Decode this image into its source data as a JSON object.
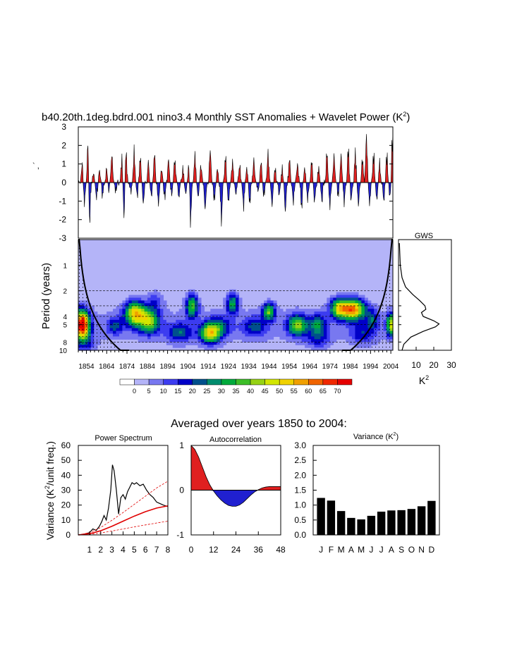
{
  "header": {
    "title": "b40.20th.1deg.bdrd.001 nino3.4 Monthly SST Anomalies + Wavelet Power (K",
    "title_sup": "2",
    "title_end": ")",
    "stray_mark": "` ,"
  },
  "summary_title": "Averaged over years 1850 to 2004:",
  "chart_data": [
    {
      "id": "timeseries",
      "type": "area",
      "ylim": [
        -3,
        3
      ],
      "yticks": [
        3,
        2,
        1,
        0,
        -1,
        -2,
        -3
      ],
      "ytick_labels": [
        "3",
        "2",
        "1",
        "0",
        "-1",
        "-2",
        "-3"
      ],
      "xlim": [
        1850,
        2005
      ],
      "positive_color": "#e02020",
      "negative_color": "#2020d0",
      "events": [
        {
          "x": 1852.0,
          "y": 1.2
        },
        {
          "x": 1853.0,
          "y": -1.4
        },
        {
          "x": 1854.8,
          "y": 2.6
        },
        {
          "x": 1855.5,
          "y": -2.9
        },
        {
          "x": 1857.5,
          "y": 0.6
        },
        {
          "x": 1859.0,
          "y": -1.0
        },
        {
          "x": 1860.5,
          "y": 0.7
        },
        {
          "x": 1862.0,
          "y": -0.9
        },
        {
          "x": 1864.0,
          "y": 0.9
        },
        {
          "x": 1865.0,
          "y": -0.6
        },
        {
          "x": 1866.5,
          "y": 1.7
        },
        {
          "x": 1868.5,
          "y": -0.5
        },
        {
          "x": 1871.5,
          "y": 1.6
        },
        {
          "x": 1872.5,
          "y": -2.1
        },
        {
          "x": 1873.5,
          "y": 1.9
        },
        {
          "x": 1876.0,
          "y": -0.6
        },
        {
          "x": 1877.5,
          "y": 1.9
        },
        {
          "x": 1879.0,
          "y": -0.9
        },
        {
          "x": 1880.5,
          "y": 1.6
        },
        {
          "x": 1882.0,
          "y": -1.2
        },
        {
          "x": 1884.5,
          "y": 1.3
        },
        {
          "x": 1886.0,
          "y": -0.8
        },
        {
          "x": 1887.5,
          "y": 1.8
        },
        {
          "x": 1889.5,
          "y": -1.3
        },
        {
          "x": 1891.0,
          "y": 0.8
        },
        {
          "x": 1892.5,
          "y": -1.0
        },
        {
          "x": 1894.5,
          "y": 1.4
        },
        {
          "x": 1896.0,
          "y": -0.8
        },
        {
          "x": 1897.5,
          "y": 1.4
        },
        {
          "x": 1899.5,
          "y": -1.0
        },
        {
          "x": 1901.5,
          "y": 0.8
        },
        {
          "x": 1903.0,
          "y": -0.5
        },
        {
          "x": 1904.5,
          "y": 1.3
        },
        {
          "x": 1905.3,
          "y": -2.8
        },
        {
          "x": 1907.5,
          "y": 1.8
        },
        {
          "x": 1909.0,
          "y": -0.9
        },
        {
          "x": 1910.5,
          "y": 1.0
        },
        {
          "x": 1912.5,
          "y": -1.5
        },
        {
          "x": 1915.0,
          "y": 2.0
        },
        {
          "x": 1917.0,
          "y": -1.1
        },
        {
          "x": 1918.5,
          "y": 0.9
        },
        {
          "x": 1920.5,
          "y": -2.4
        },
        {
          "x": 1922.5,
          "y": 1.6
        },
        {
          "x": 1924.0,
          "y": -1.2
        },
        {
          "x": 1926.0,
          "y": 1.3
        },
        {
          "x": 1927.5,
          "y": -0.7
        },
        {
          "x": 1929.5,
          "y": 1.0
        },
        {
          "x": 1931.5,
          "y": -1.5
        },
        {
          "x": 1933.0,
          "y": 0.9
        },
        {
          "x": 1934.5,
          "y": -1.2
        },
        {
          "x": 1936.5,
          "y": 1.4
        },
        {
          "x": 1938.5,
          "y": -0.6
        },
        {
          "x": 1940.0,
          "y": 1.3
        },
        {
          "x": 1941.5,
          "y": -0.9
        },
        {
          "x": 1943.5,
          "y": 1.7
        },
        {
          "x": 1945.5,
          "y": -1.4
        },
        {
          "x": 1947.0,
          "y": 1.0
        },
        {
          "x": 1949.0,
          "y": -0.8
        },
        {
          "x": 1950.5,
          "y": 0.9
        },
        {
          "x": 1952.0,
          "y": -1.8
        },
        {
          "x": 1954.0,
          "y": 1.4
        },
        {
          "x": 1956.0,
          "y": -1.3
        },
        {
          "x": 1958.0,
          "y": 1.1
        },
        {
          "x": 1960.0,
          "y": -1.6
        },
        {
          "x": 1961.5,
          "y": 0.9
        },
        {
          "x": 1963.0,
          "y": -1.0
        },
        {
          "x": 1965.0,
          "y": 1.5
        },
        {
          "x": 1966.5,
          "y": -1.2
        },
        {
          "x": 1968.5,
          "y": 1.0
        },
        {
          "x": 1970.0,
          "y": -1.2
        },
        {
          "x": 1972.5,
          "y": 1.9
        },
        {
          "x": 1974.0,
          "y": -1.4
        },
        {
          "x": 1976.0,
          "y": 1.6
        },
        {
          "x": 1978.0,
          "y": -0.9
        },
        {
          "x": 1979.5,
          "y": 1.6
        },
        {
          "x": 1981.0,
          "y": -1.3
        },
        {
          "x": 1983.0,
          "y": 2.1
        },
        {
          "x": 1984.5,
          "y": -1.0
        },
        {
          "x": 1986.5,
          "y": 1.9
        },
        {
          "x": 1988.0,
          "y": -1.3
        },
        {
          "x": 1990.0,
          "y": 1.4
        },
        {
          "x": 1992.0,
          "y": 2.9
        },
        {
          "x": 1993.5,
          "y": -1.4
        },
        {
          "x": 1995.5,
          "y": 1.8
        },
        {
          "x": 1997.0,
          "y": -1.1
        },
        {
          "x": 1998.5,
          "y": 1.3
        },
        {
          "x": 2000.5,
          "y": -1.2
        },
        {
          "x": 2002.0,
          "y": 1.9
        },
        {
          "x": 2003.5,
          "y": -0.8
        },
        {
          "x": 2004.8,
          "y": 3.0
        }
      ]
    },
    {
      "id": "wavelet",
      "type": "heatmap",
      "ylabel": "Period (years)",
      "y_log": true,
      "ylim": [
        10,
        0.5
      ],
      "yticks": [
        1,
        2,
        3,
        4,
        5,
        8,
        10
      ],
      "ytick_labels": [
        "1",
        "2",
        "",
        "4",
        "5",
        "8",
        "10"
      ],
      "xlim": [
        1850,
        2005
      ],
      "xticks": [
        1854,
        1864,
        1874,
        1884,
        1894,
        1904,
        1914,
        1924,
        1934,
        1944,
        1954,
        1964,
        1974,
        1984,
        1994,
        2004
      ],
      "xtick_labels": [
        "1854",
        "1864",
        "1874",
        "1884",
        "1894",
        "1904",
        "1914",
        "1924",
        "1934",
        "1944",
        "1954",
        "1964",
        "1974",
        "1984",
        "1994",
        "2004"
      ],
      "dashed_periods": [
        2,
        3,
        4,
        5,
        8
      ],
      "blobs": [
        {
          "x": 1852,
          "p": 5.0,
          "w": 3.5,
          "h": 0.16,
          "amp": 75
        },
        {
          "x": 1854,
          "p": 8.3,
          "w": 5,
          "h": 0.12,
          "amp": 12
        },
        {
          "x": 1878,
          "p": 3.7,
          "w": 5,
          "h": 0.14,
          "amp": 50
        },
        {
          "x": 1885,
          "p": 4.6,
          "w": 5,
          "h": 0.14,
          "amp": 38
        },
        {
          "x": 1868,
          "p": 5.2,
          "w": 4,
          "h": 0.1,
          "amp": 18
        },
        {
          "x": 1888,
          "p": 2.6,
          "w": 4,
          "h": 0.12,
          "amp": 12
        },
        {
          "x": 1900,
          "p": 6.2,
          "w": 6,
          "h": 0.12,
          "amp": 20
        },
        {
          "x": 1915,
          "p": 6.3,
          "w": 5,
          "h": 0.12,
          "amp": 45
        },
        {
          "x": 1906,
          "p": 3.0,
          "w": 3,
          "h": 0.14,
          "amp": 35
        },
        {
          "x": 1926,
          "p": 2.8,
          "w": 3,
          "h": 0.12,
          "amp": 30
        },
        {
          "x": 1920,
          "p": 5.2,
          "w": 6,
          "h": 0.12,
          "amp": 16
        },
        {
          "x": 1937,
          "p": 5.3,
          "w": 6,
          "h": 0.12,
          "amp": 18
        },
        {
          "x": 1944,
          "p": 3.5,
          "w": 3,
          "h": 0.1,
          "amp": 36
        },
        {
          "x": 1958,
          "p": 5.1,
          "w": 5,
          "h": 0.12,
          "amp": 38
        },
        {
          "x": 1968,
          "p": 5.0,
          "w": 4,
          "h": 0.12,
          "amp": 25
        },
        {
          "x": 1968,
          "p": 7.6,
          "w": 6,
          "h": 0.1,
          "amp": 14
        },
        {
          "x": 1985,
          "p": 3.3,
          "w": 6,
          "h": 0.12,
          "amp": 60
        },
        {
          "x": 1978,
          "p": 3.2,
          "w": 4,
          "h": 0.12,
          "amp": 35
        },
        {
          "x": 1995,
          "p": 4.4,
          "w": 3,
          "h": 0.12,
          "amp": 18
        },
        {
          "x": 1990,
          "p": 6.5,
          "w": 6,
          "h": 0.12,
          "amp": 15
        },
        {
          "x": 2004,
          "p": 5.0,
          "w": 2,
          "h": 0.12,
          "amp": 45
        }
      ],
      "colorbar": {
        "labels": [
          "0",
          "5",
          "10",
          "15",
          "20",
          "25",
          "30",
          "35",
          "40",
          "45",
          "50",
          "55",
          "60",
          "65",
          "70"
        ],
        "colors": [
          "#ffffff",
          "#b4b4f8",
          "#7878f0",
          "#3c3cf0",
          "#0000c8",
          "#00508c",
          "#008c6e",
          "#00aa3c",
          "#3cbe28",
          "#96d214",
          "#d2e600",
          "#f0d200",
          "#f0a000",
          "#f06400",
          "#f02800",
          "#e60000"
        ]
      }
    },
    {
      "id": "gws",
      "type": "line",
      "title": "GWS",
      "xlabel": "K",
      "xlabel_sup": "2",
      "xlim": [
        0,
        30
      ],
      "xticks": [
        10,
        20,
        30
      ],
      "xtick_labels": [
        "10",
        "20",
        "30"
      ],
      "points": [
        {
          "period": 0.55,
          "value": 0.5
        },
        {
          "period": 1.0,
          "value": 1.0
        },
        {
          "period": 1.4,
          "value": 2.0
        },
        {
          "period": 1.8,
          "value": 4.0
        },
        {
          "period": 2.2,
          "value": 8.0
        },
        {
          "period": 2.6,
          "value": 12.0
        },
        {
          "period": 3.0,
          "value": 15.0
        },
        {
          "period": 3.3,
          "value": 15.5
        },
        {
          "period": 3.6,
          "value": 13.0
        },
        {
          "period": 4.0,
          "value": 14.0
        },
        {
          "period": 4.5,
          "value": 20.0
        },
        {
          "period": 4.9,
          "value": 23.0
        },
        {
          "period": 5.3,
          "value": 21.0
        },
        {
          "period": 6.0,
          "value": 14.0
        },
        {
          "period": 7.0,
          "value": 7.0
        },
        {
          "period": 8.5,
          "value": 3.0
        },
        {
          "period": 10.0,
          "value": 2.0
        }
      ]
    },
    {
      "id": "power_spectrum",
      "type": "line",
      "title": "Power Spectrum",
      "ylabel": "Variance (K",
      "ylabel_sup": "2",
      "ylabel_end": "/unit freq.)",
      "xlim": [
        0,
        8
      ],
      "ylim": [
        0,
        60
      ],
      "xticks": [
        1,
        2,
        3,
        4,
        5,
        6,
        7,
        8
      ],
      "xtick_labels": [
        "1",
        "2",
        "3",
        "4",
        "5",
        "6",
        "7",
        "8"
      ],
      "yticks": [
        0,
        10,
        20,
        30,
        40,
        50,
        60
      ],
      "ytick_labels": [
        "0",
        "10",
        "20",
        "30",
        "40",
        "50",
        "60"
      ],
      "series": [
        {
          "key": "spectrum",
          "color": "#000000",
          "x": [
            0,
            0.5,
            1.0,
            1.3,
            1.6,
            1.9,
            2.1,
            2.3,
            2.5,
            2.7,
            2.9,
            3.05,
            3.2,
            3.4,
            3.6,
            3.8,
            4.0,
            4.2,
            4.4,
            4.6,
            4.8,
            5.0,
            5.2,
            5.5,
            5.8,
            6.1,
            6.4,
            6.7,
            7.0,
            7.3,
            7.6,
            8.0
          ],
          "y": [
            0,
            0.5,
            1.5,
            4,
            3,
            6,
            9,
            13,
            10,
            18,
            30,
            47,
            43,
            30,
            14,
            25,
            27,
            24,
            29,
            32,
            35,
            34,
            35,
            33,
            34,
            30,
            27,
            25,
            22,
            21,
            20,
            19
          ]
        },
        {
          "key": "red_noise",
          "color": "#e00000",
          "x": [
            0,
            1,
            2,
            3,
            4,
            5,
            6,
            7,
            8
          ],
          "y": [
            0,
            0.8,
            2.8,
            5.8,
            9.2,
            12.6,
            15.6,
            18.0,
            19.5
          ]
        },
        {
          "key": "upper",
          "color": "#e00000",
          "dashed": true,
          "x": [
            0,
            1,
            2,
            3,
            4,
            5,
            6,
            7,
            8
          ],
          "y": [
            0,
            1.5,
            5.0,
            9.8,
            15.0,
            20.5,
            26.0,
            31.5,
            36.0
          ]
        },
        {
          "key": "lower",
          "color": "#e00000",
          "dashed": true,
          "x": [
            0,
            1,
            2,
            3,
            4,
            5,
            6,
            7,
            8
          ],
          "y": [
            0,
            0.4,
            1.3,
            2.6,
            4.0,
            5.4,
            6.7,
            8.0,
            9.2
          ]
        }
      ]
    },
    {
      "id": "autocorrelation",
      "type": "area",
      "title": "Autocorrelation",
      "xlim": [
        0,
        48
      ],
      "ylim": [
        -1,
        1
      ],
      "xticks": [
        0,
        12,
        24,
        36,
        48
      ],
      "xtick_labels": [
        "0",
        "12",
        "24",
        "36",
        "48"
      ],
      "yticks": [
        1,
        0,
        -1
      ],
      "ytick_labels": [
        "1",
        "0",
        "-1"
      ],
      "positive_color": "#e02020",
      "negative_color": "#2020d0",
      "x": [
        0,
        2,
        4,
        6,
        8,
        10,
        12,
        14,
        16,
        18,
        20,
        22,
        24,
        26,
        28,
        30,
        32,
        34,
        36,
        38,
        40,
        42,
        44,
        46,
        48
      ],
      "y": [
        1.0,
        0.91,
        0.74,
        0.52,
        0.3,
        0.12,
        -0.02,
        -0.13,
        -0.22,
        -0.29,
        -0.34,
        -0.36,
        -0.36,
        -0.33,
        -0.27,
        -0.19,
        -0.11,
        -0.04,
        0.01,
        0.05,
        0.07,
        0.08,
        0.08,
        0.08,
        0.08
      ]
    },
    {
      "id": "variance",
      "type": "bar",
      "title": "Variance (K",
      "title_sup": "2",
      "title_end": ")",
      "categories": [
        "J",
        "F",
        "M",
        "A",
        "M",
        "J",
        "J",
        "A",
        "S",
        "O",
        "N",
        "D"
      ],
      "values": [
        1.24,
        1.15,
        0.8,
        0.57,
        0.52,
        0.64,
        0.78,
        0.82,
        0.83,
        0.87,
        0.96,
        1.14
      ],
      "ylim": [
        0,
        3
      ],
      "yticks": [
        0,
        0.5,
        1,
        1.5,
        2,
        2.5,
        3
      ],
      "ytick_labels": [
        "0.0",
        "0.5",
        "1.0",
        "1.5",
        "2.0",
        "2.5",
        "3.0"
      ],
      "bar_color": "#000000"
    }
  ]
}
